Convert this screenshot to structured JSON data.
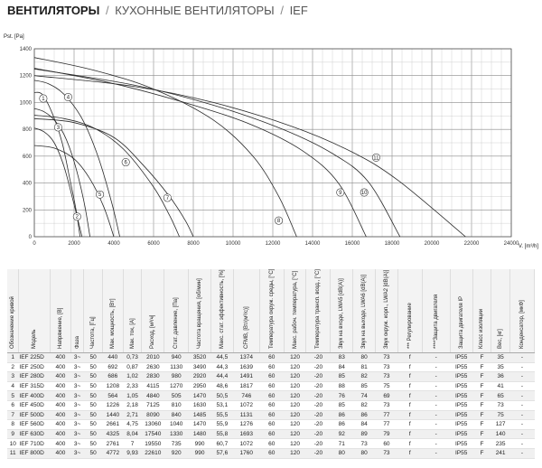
{
  "header": {
    "category": "ВЕНТИЛЯТОРЫ",
    "subcategory": "КУХОННЫЕ ВЕНТИЛЯТОРЫ",
    "series": "IEF",
    "separator": "/"
  },
  "chart_data": {
    "type": "line",
    "ylabel": "Pst. [Pa]",
    "xlabel": "V. [m³/h]",
    "xlim": [
      0,
      24000
    ],
    "ylim": [
      0,
      1400
    ],
    "x_ticks": [
      0,
      2000,
      4000,
      6000,
      8000,
      10000,
      12000,
      14000,
      16000,
      18000,
      20000,
      22000,
      24000
    ],
    "y_ticks": [
      0,
      200,
      400,
      600,
      800,
      1000,
      1200,
      1400
    ],
    "grid": true,
    "series": [
      {
        "name": "1",
        "points": [
          [
            0,
            1075
          ],
          [
            400,
            1060
          ],
          [
            900,
            920
          ],
          [
            1400,
            700
          ],
          [
            1800,
            420
          ],
          [
            2100,
            200
          ],
          [
            2300,
            0
          ]
        ]
      },
      {
        "name": "2",
        "points": [
          [
            0,
            810
          ],
          [
            500,
            780
          ],
          [
            1000,
            700
          ],
          [
            1500,
            520
          ],
          [
            2000,
            240
          ],
          [
            2400,
            0
          ]
        ]
      },
      {
        "name": "3",
        "points": [
          [
            0,
            955
          ],
          [
            500,
            930
          ],
          [
            1000,
            870
          ],
          [
            1500,
            760
          ],
          [
            2000,
            560
          ],
          [
            2500,
            260
          ],
          [
            2800,
            0
          ]
        ]
      },
      {
        "name": "4",
        "points": [
          [
            0,
            1165
          ],
          [
            700,
            1140
          ],
          [
            1500,
            1060
          ],
          [
            2400,
            880
          ],
          [
            3200,
            600
          ],
          [
            3900,
            250
          ],
          [
            4300,
            0
          ]
        ]
      },
      {
        "name": "5",
        "points": [
          [
            0,
            680
          ],
          [
            1000,
            660
          ],
          [
            2000,
            580
          ],
          [
            2800,
            430
          ],
          [
            3500,
            220
          ],
          [
            4000,
            0
          ]
        ]
      },
      {
        "name": "6",
        "points": [
          [
            0,
            905
          ],
          [
            1500,
            880
          ],
          [
            3000,
            810
          ],
          [
            4500,
            650
          ],
          [
            6000,
            370
          ],
          [
            6800,
            160
          ],
          [
            7300,
            0
          ]
        ]
      },
      {
        "name": "7",
        "points": [
          [
            0,
            880
          ],
          [
            2000,
            850
          ],
          [
            4000,
            740
          ],
          [
            5500,
            530
          ],
          [
            6800,
            300
          ],
          [
            7600,
            120
          ],
          [
            8000,
            0
          ]
        ]
      },
      {
        "name": "8",
        "points": [
          [
            0,
            1335
          ],
          [
            3000,
            1240
          ],
          [
            6000,
            1100
          ],
          [
            9000,
            870
          ],
          [
            11000,
            600
          ],
          [
            12300,
            300
          ],
          [
            13200,
            0
          ]
        ]
      },
      {
        "name": "9",
        "points": [
          [
            0,
            1255
          ],
          [
            4000,
            1140
          ],
          [
            8000,
            980
          ],
          [
            11000,
            830
          ],
          [
            13500,
            640
          ],
          [
            15300,
            400
          ],
          [
            16700,
            0
          ]
        ]
      },
      {
        "name": "10",
        "points": [
          [
            0,
            1250
          ],
          [
            5000,
            1130
          ],
          [
            9000,
            980
          ],
          [
            12500,
            800
          ],
          [
            15000,
            620
          ],
          [
            16800,
            410
          ],
          [
            18400,
            0
          ]
        ]
      },
      {
        "name": "11",
        "points": [
          [
            0,
            1200
          ],
          [
            5000,
            1120
          ],
          [
            9000,
            1000
          ],
          [
            13000,
            820
          ],
          [
            16000,
            630
          ],
          [
            18300,
            420
          ],
          [
            21700,
            0
          ]
        ]
      }
    ],
    "curve_labels": [
      {
        "id": "1",
        "x": 450,
        "y": 1030
      },
      {
        "id": "2",
        "x": 2150,
        "y": 150
      },
      {
        "id": "3",
        "x": 1200,
        "y": 815
      },
      {
        "id": "4",
        "x": 1700,
        "y": 1040
      },
      {
        "id": "5",
        "x": 3300,
        "y": 315
      },
      {
        "id": "6",
        "x": 4600,
        "y": 555
      },
      {
        "id": "7",
        "x": 6700,
        "y": 290
      },
      {
        "id": "8",
        "x": 12300,
        "y": 120
      },
      {
        "id": "9",
        "x": 15400,
        "y": 330
      },
      {
        "id": "10",
        "x": 16600,
        "y": 330
      },
      {
        "id": "11",
        "x": 17200,
        "y": 590
      }
    ]
  },
  "table": {
    "headers": [
      "Обозначение кривой",
      "Модель",
      "Напряжение, [В]",
      "Фаза",
      "Частота, [Гц]",
      "Мак. мощность, [Вт]",
      "Мак. ток, [А]",
      "Расход, [м³/ч]",
      "Стат. давление, [Па]",
      "Частота вращения, [об/мин]",
      "Макс. стат. эффективность, [%]",
      "СFМВ, [Вт/(м³/с)]",
      "Температура окруж. среды, [°C]",
      "Макс. рабоч. температура, [°C]",
      "Температура трансп. возд., [°C]",
      "Звук на входе, LWA5 [dB(A)]",
      "Звук на выходе, LWA6 [dB(A)]",
      "Звук окруж. корп., LWA2 [dB(A)]",
      "*** Регулирование",
      "****Защита двигателя",
      "Защита двигателя IP",
      "Класс изоляции",
      "Вес, [кг]",
      "Конденсатор, [мкФ]"
    ],
    "rows": [
      [
        "1",
        "IEF 225D",
        "400",
        "3~",
        "50",
        "440",
        "0,73",
        "2010",
        "940",
        "3520",
        "44,5",
        "1374",
        "60",
        "120",
        "-20",
        "83",
        "80",
        "73",
        "f",
        "-",
        "IP55",
        "F",
        "35",
        "-"
      ],
      [
        "2",
        "IEF 250D",
        "400",
        "3~",
        "50",
        "692",
        "0,87",
        "2630",
        "1130",
        "3490",
        "44,3",
        "1639",
        "60",
        "120",
        "-20",
        "84",
        "81",
        "73",
        "f",
        "-",
        "IP55",
        "F",
        "35",
        "-"
      ],
      [
        "3",
        "IEF 280D",
        "400",
        "3~",
        "50",
        "686",
        "1,02",
        "2830",
        "980",
        "2920",
        "44,4",
        "1491",
        "60",
        "120",
        "-20",
        "85",
        "82",
        "73",
        "f",
        "-",
        "IP55",
        "F",
        "36",
        "-"
      ],
      [
        "4",
        "IEF 315D",
        "400",
        "3~",
        "50",
        "1208",
        "2,33",
        "4115",
        "1270",
        "2950",
        "48,6",
        "1817",
        "60",
        "120",
        "-20",
        "88",
        "85",
        "75",
        "f",
        "-",
        "IP55",
        "F",
        "41",
        "-"
      ],
      [
        "5",
        "IEF 400D",
        "400",
        "3~",
        "50",
        "564",
        "1,05",
        "4840",
        "505",
        "1470",
        "50,5",
        "746",
        "60",
        "120",
        "-20",
        "76",
        "74",
        "69",
        "f",
        "-",
        "IP55",
        "F",
        "65",
        "-"
      ],
      [
        "6",
        "IEF 450D",
        "400",
        "3~",
        "50",
        "1226",
        "2,18",
        "7125",
        "810",
        "1630",
        "53,1",
        "1072",
        "60",
        "120",
        "-20",
        "85",
        "82",
        "73",
        "f",
        "-",
        "IP55",
        "F",
        "73",
        "-"
      ],
      [
        "7",
        "IEF 500D",
        "400",
        "3~",
        "50",
        "1440",
        "2,71",
        "8090",
        "840",
        "1485",
        "55,5",
        "1131",
        "60",
        "120",
        "-20",
        "86",
        "86",
        "77",
        "f",
        "-",
        "IP55",
        "F",
        "75",
        "-"
      ],
      [
        "8",
        "IEF 560D",
        "400",
        "3~",
        "50",
        "2661",
        "4,75",
        "13060",
        "1040",
        "1470",
        "55,9",
        "1276",
        "60",
        "120",
        "-20",
        "86",
        "84",
        "77",
        "f",
        "-",
        "IP55",
        "F",
        "127",
        "-"
      ],
      [
        "9",
        "IEF 630D",
        "400",
        "3~",
        "50",
        "4325",
        "8,04",
        "17540",
        "1330",
        "1480",
        "55,8",
        "1693",
        "60",
        "120",
        "-20",
        "92",
        "89",
        "79",
        "f",
        "-",
        "IP55",
        "F",
        "140",
        "-"
      ],
      [
        "10",
        "IEF 710D",
        "400",
        "3~",
        "50",
        "2761",
        "7",
        "19550",
        "735",
        "990",
        "60,7",
        "1072",
        "60",
        "120",
        "-20",
        "71",
        "73",
        "60",
        "f",
        "-",
        "IP55",
        "F",
        "235",
        "-"
      ],
      [
        "11",
        "IEF 800D",
        "400",
        "3~",
        "50",
        "4772",
        "9,93",
        "22610",
        "920",
        "990",
        "57,6",
        "1760",
        "60",
        "120",
        "-20",
        "80",
        "80",
        "73",
        "f",
        "-",
        "IP55",
        "F",
        "241",
        "-"
      ]
    ]
  }
}
